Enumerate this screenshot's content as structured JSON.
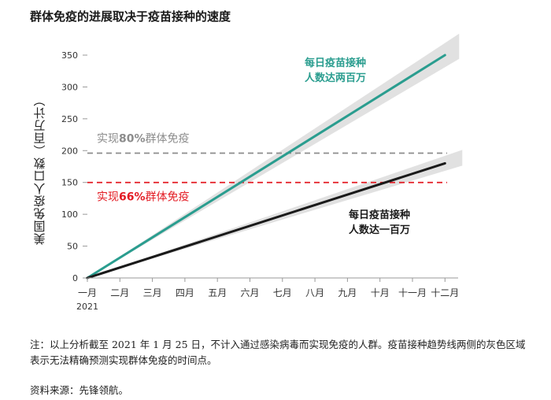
{
  "title": "群体免疫的进展取决于疫苗接种的速度",
  "note": "注：以上分析截至 2021 年 1 月 25 日，不计入通过感染病毒而实现免疫的人群。疫苗接种趋势线两侧的灰色区域表示无法精确预测实现群体免疫的时间点。",
  "source": "资料来源：先锋领航。",
  "chart_data": {
    "type": "line",
    "ylabel": "美国免疫人口数（百万计）",
    "ylim": [
      0,
      350
    ],
    "yticks": [
      0,
      50,
      100,
      150,
      200,
      250,
      300,
      350
    ],
    "categories": [
      "一月",
      "二月",
      "三月",
      "四月",
      "五月",
      "六月",
      "七月",
      "八月",
      "九月",
      "十月",
      "十一月",
      "十二月"
    ],
    "year_label": "2021",
    "series": [
      {
        "name": "每日疫苗接种人数达两百万",
        "color": "#2a9d8f",
        "x": [
          0,
          11
        ],
        "y": [
          0,
          350
        ],
        "label_lines": [
          "每日疫苗接种",
          "人数达两百万"
        ]
      },
      {
        "name": "每日疫苗接种人数达一百万",
        "color": "#1a1a1a",
        "x": [
          0,
          11
        ],
        "y": [
          0,
          180
        ],
        "label_lines": [
          "每日疫苗接种",
          "人数达一百万"
        ]
      }
    ],
    "reference_lines": [
      {
        "value": 196,
        "label_pre": "实现",
        "label_bold": "80%",
        "label_post": "群体免疫",
        "color": "#8c8c8c"
      },
      {
        "value": 150,
        "label_pre": "实现",
        "label_bold": "66%",
        "label_post": "群体免疫",
        "color": "#e31b23"
      }
    ],
    "band_color": "#d9d9d9"
  }
}
